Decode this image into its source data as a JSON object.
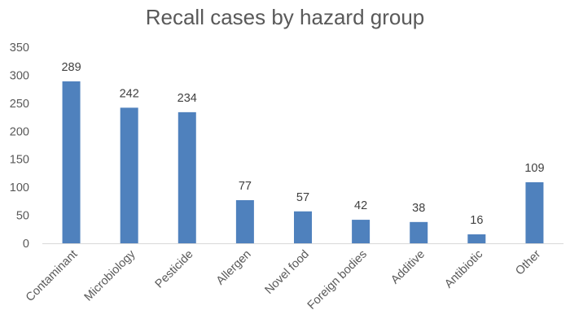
{
  "chart_data": {
    "type": "bar",
    "title": "Recall cases by hazard group",
    "xlabel": "",
    "ylabel": "",
    "categories": [
      "Contaminant",
      "Microbiology",
      "Pesticide",
      "Allergen",
      "Novel food",
      "Foreign bodies",
      "Additive",
      "Antibiotic",
      "Other"
    ],
    "values": [
      289,
      242,
      234,
      77,
      57,
      42,
      38,
      16,
      109
    ],
    "data_labels": [
      "289",
      "242",
      "234",
      "77",
      "57",
      "42",
      "38",
      "16",
      "109"
    ],
    "ylim": [
      0,
      350
    ],
    "yticks": [
      0,
      50,
      100,
      150,
      200,
      250,
      300,
      350
    ],
    "ytick_labels": [
      "0",
      "50",
      "100",
      "150",
      "200",
      "250",
      "300",
      "350"
    ],
    "grid": false,
    "legend": "none",
    "bar_color": "#4f81bd",
    "axis_color": "#d9d9d9"
  }
}
